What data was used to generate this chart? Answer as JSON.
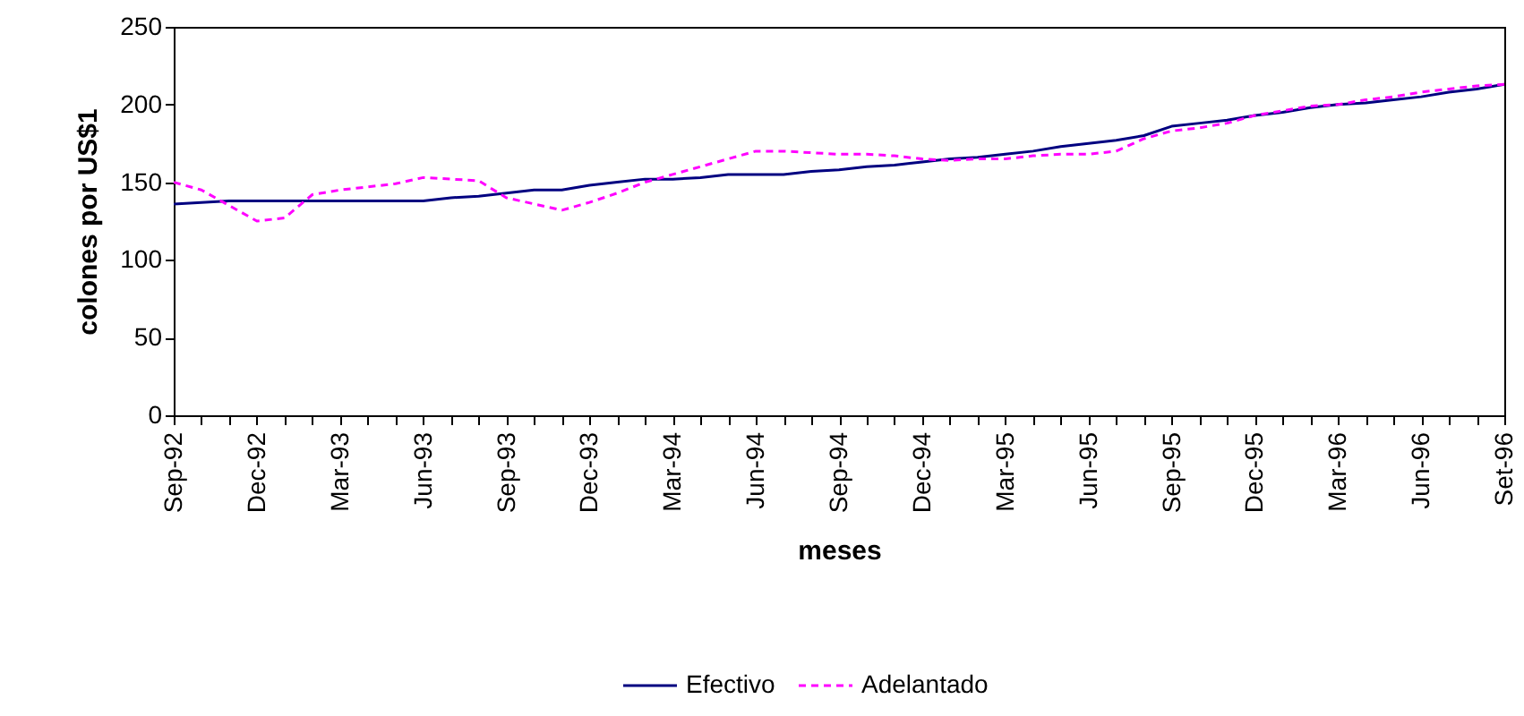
{
  "chart_data": {
    "type": "line",
    "xlabel": "meses",
    "ylabel": "colones por US$1",
    "categories": [
      "Sep-92",
      null,
      null,
      "Dec-92",
      null,
      null,
      "Mar-93",
      null,
      null,
      "Jun-93",
      null,
      null,
      "Sep-93",
      null,
      null,
      "Dec-93",
      null,
      null,
      "Mar-94",
      null,
      null,
      "Jun-94",
      null,
      null,
      "Sep-94",
      null,
      null,
      "Dec-94",
      null,
      null,
      "Mar-95",
      null,
      null,
      "Jun-95",
      null,
      null,
      "Sep-95",
      null,
      null,
      "Dec-95",
      null,
      null,
      "Mar-96",
      null,
      null,
      "Jun-96",
      null,
      null,
      "Set-96"
    ],
    "series": [
      {
        "name": "Efectivo",
        "color": "#000080",
        "line_style": "solid",
        "values": [
          136,
          137,
          138,
          138,
          138,
          138,
          138,
          138,
          138,
          138,
          140,
          141,
          143,
          145,
          145,
          148,
          150,
          152,
          152,
          153,
          155,
          155,
          155,
          157,
          158,
          160,
          161,
          163,
          165,
          166,
          168,
          170,
          173,
          175,
          177,
          180,
          186,
          188,
          190,
          193,
          195,
          198,
          200,
          201,
          203,
          205,
          208,
          210,
          213
        ]
      },
      {
        "name": "Adelantado",
        "color": "#ff00ff",
        "line_style": "dashed",
        "values": [
          150,
          145,
          135,
          125,
          127,
          142,
          145,
          147,
          149,
          153,
          152,
          151,
          140,
          136,
          132,
          137,
          143,
          150,
          155,
          160,
          165,
          170,
          170,
          169,
          168,
          168,
          167,
          165,
          164,
          165,
          165,
          167,
          168,
          168,
          170,
          178,
          183,
          185,
          188,
          193,
          196,
          199,
          200,
          203,
          205,
          208,
          210,
          212,
          213
        ]
      }
    ],
    "ylim": [
      0,
      250
    ],
    "yticks": [
      0,
      50,
      100,
      150,
      200,
      250
    ],
    "grid": false,
    "legend": "bottom",
    "marker": "none"
  }
}
